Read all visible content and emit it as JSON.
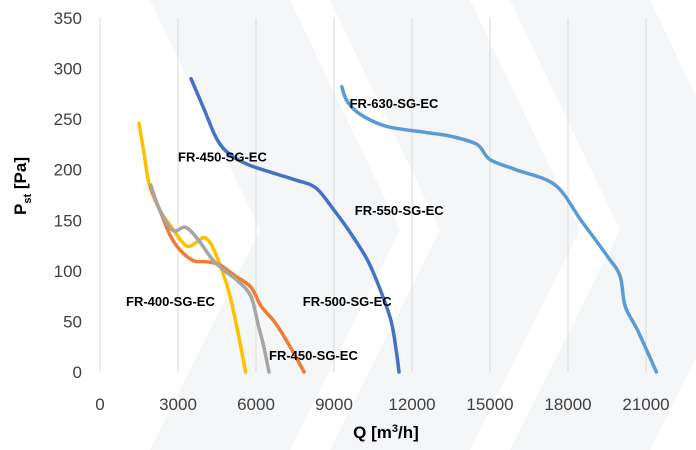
{
  "chart_data": {
    "type": "line",
    "xlabel": "Q [m³/h]",
    "ylabel": "Pst [Pa]",
    "xlim": [
      0,
      22000
    ],
    "ylim": [
      0,
      350
    ],
    "xticks": [
      0,
      3000,
      6000,
      9000,
      12000,
      15000,
      18000,
      21000
    ],
    "yticks": [
      0,
      50,
      100,
      150,
      200,
      250,
      300,
      350
    ],
    "xtick_labels": [
      "0",
      "3000",
      "6000",
      "9000",
      "12000",
      "15000",
      "18000",
      "21000"
    ],
    "ytick_labels": [
      "0",
      "50",
      "100",
      "150",
      "200",
      "250",
      "300",
      "350"
    ],
    "grid": "vertical",
    "series": [
      {
        "id": "s400",
        "color": "#ffc000",
        "points": [
          [
            1500,
            246
          ],
          [
            1700,
            215
          ],
          [
            1900,
            185
          ],
          [
            2300,
            160
          ],
          [
            2700,
            145
          ],
          [
            3300,
            125
          ],
          [
            3700,
            128
          ],
          [
            4000,
            133
          ],
          [
            4300,
            125
          ],
          [
            4700,
            100
          ],
          [
            5000,
            75
          ],
          [
            5300,
            40
          ],
          [
            5600,
            0
          ]
        ]
      },
      {
        "id": "s450a",
        "color": "#ed7d31",
        "points": [
          [
            1950,
            182
          ],
          [
            2300,
            160
          ],
          [
            2700,
            135
          ],
          [
            3100,
            120
          ],
          [
            3600,
            110
          ],
          [
            4100,
            109
          ],
          [
            4600,
            106
          ],
          [
            5200,
            95
          ],
          [
            5800,
            84
          ],
          [
            6200,
            65
          ],
          [
            6700,
            50
          ],
          [
            7200,
            30
          ],
          [
            7850,
            0
          ]
        ]
      },
      {
        "id": "s450b",
        "color": "#a5a5a5",
        "points": [
          [
            1950,
            185
          ],
          [
            2300,
            160
          ],
          [
            2800,
            140
          ],
          [
            3300,
            143
          ],
          [
            3800,
            130
          ],
          [
            4300,
            112
          ],
          [
            4800,
            100
          ],
          [
            5300,
            90
          ],
          [
            5800,
            75
          ],
          [
            6100,
            45
          ],
          [
            6300,
            25
          ],
          [
            6500,
            0
          ]
        ]
      },
      {
        "id": "s500",
        "color": "#4472c4",
        "points": [
          [
            3500,
            290
          ],
          [
            4000,
            260
          ],
          [
            4500,
            230
          ],
          [
            5000,
            215
          ],
          [
            5700,
            205
          ],
          [
            6500,
            198
          ],
          [
            7500,
            190
          ],
          [
            8300,
            182
          ],
          [
            9000,
            160
          ],
          [
            9700,
            135
          ],
          [
            10300,
            110
          ],
          [
            10800,
            80
          ],
          [
            11200,
            50
          ],
          [
            11400,
            20
          ],
          [
            11500,
            0
          ]
        ]
      },
      {
        "id": "s630",
        "color": "#5b9bd5",
        "points": [
          [
            9300,
            282
          ],
          [
            9500,
            268
          ],
          [
            10000,
            255
          ],
          [
            11000,
            243
          ],
          [
            12500,
            237
          ],
          [
            13500,
            233
          ],
          [
            14500,
            225
          ],
          [
            15000,
            210
          ],
          [
            16000,
            200
          ],
          [
            17500,
            185
          ],
          [
            18500,
            150
          ],
          [
            19500,
            115
          ],
          [
            20000,
            95
          ],
          [
            20200,
            65
          ],
          [
            20700,
            40
          ],
          [
            21400,
            0
          ]
        ]
      }
    ],
    "labels": [
      {
        "text": "FR-400-SG-EC",
        "x": 1000,
        "y": 70
      },
      {
        "text": "FR-450-SG-EC",
        "x": 3000,
        "y": 213
      },
      {
        "text": "FR-450-SG-EC",
        "x": 6500,
        "y": 17
      },
      {
        "text": "FR-500-SG-EC",
        "x": 7800,
        "y": 70
      },
      {
        "text": "FR-550-SG-EC",
        "x": 9800,
        "y": 160
      },
      {
        "text": "FR-630-SG-EC",
        "x": 9600,
        "y": 266
      }
    ]
  }
}
